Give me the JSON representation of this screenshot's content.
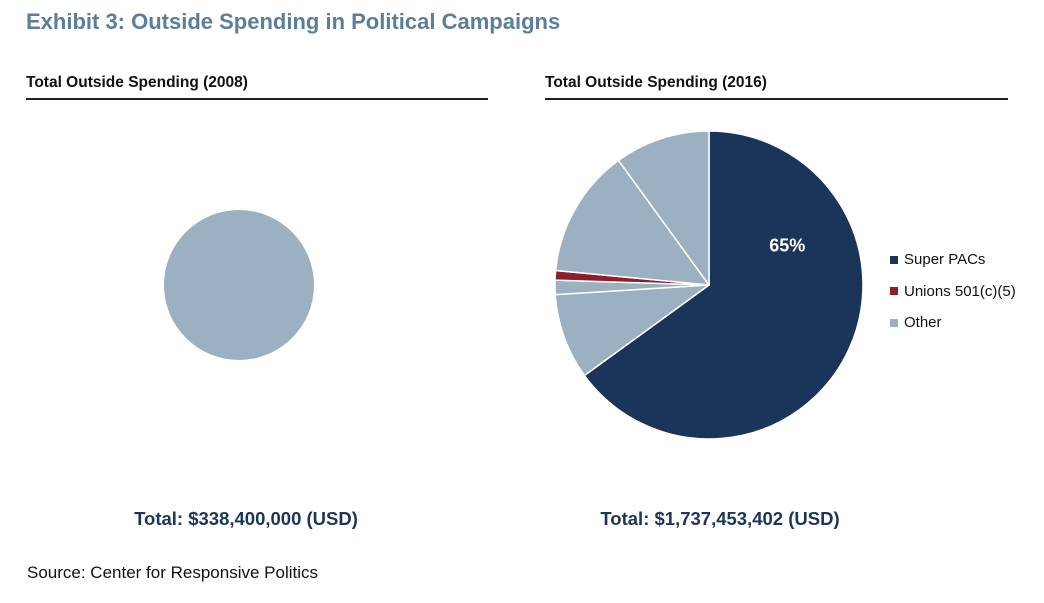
{
  "exhibit_title": "Exhibit 3: Outside Spending in Political Campaigns",
  "colors": {
    "super_pacs": "#1b355a",
    "unions": "#8c1f2a",
    "other": "#9bb1c1",
    "title": "#5b7e99"
  },
  "chart_data": [
    {
      "type": "pie",
      "title": "Total Outside Spending (2008)",
      "total_label": "Total: $338,400,000 (USD)",
      "slices": [
        {
          "name": "Other",
          "value": 100,
          "color": "#9bb1c1"
        }
      ]
    },
    {
      "type": "pie",
      "title": "Total Outside Spending (2016)",
      "total_label": "Total: $1,737,453,402 (USD)",
      "slices": [
        {
          "name": "Super PACs",
          "value": 65,
          "color": "#1b355a",
          "label": "65%"
        },
        {
          "name": "Other",
          "value": 9,
          "color": "#9bb1c1"
        },
        {
          "name": "Other",
          "value": 1.5,
          "color": "#9bb1c1"
        },
        {
          "name": "Unions 501(c)(5)",
          "value": 1,
          "color": "#8c1f2a"
        },
        {
          "name": "Other",
          "value": 13.5,
          "color": "#9bb1c1"
        },
        {
          "name": "Other",
          "value": 10,
          "color": "#9bb1c1"
        }
      ],
      "legend": [
        {
          "label": "Super PACs",
          "color": "#1b355a"
        },
        {
          "label": "Unions 501(c)(5)",
          "color": "#8c1f2a"
        },
        {
          "label": "Other",
          "color": "#9bb1c1"
        }
      ]
    }
  ],
  "source": "Source: Center for Responsive Politics"
}
